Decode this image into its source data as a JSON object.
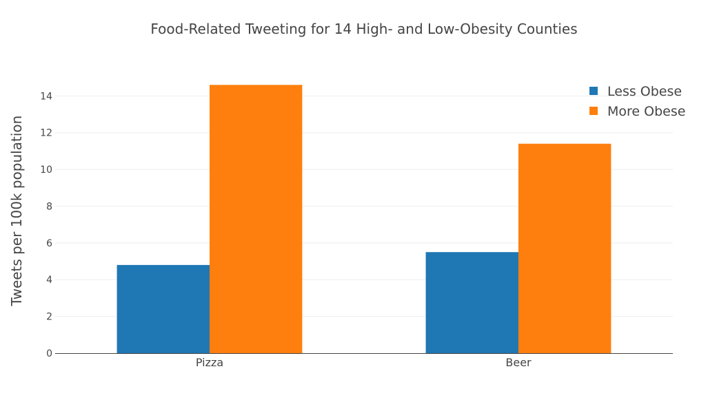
{
  "chart_data": {
    "type": "bar",
    "title": "Food-Related Tweeting for 14 High- and Low-Obesity Counties",
    "xlabel": "",
    "ylabel": "Tweets per 100k population",
    "categories": [
      "Pizza",
      "Beer"
    ],
    "series": [
      {
        "name": "Less Obese",
        "values": [
          4.8,
          5.5
        ],
        "color": "#1f77b4"
      },
      {
        "name": "More Obese",
        "values": [
          14.6,
          11.4
        ],
        "color": "#ff7f0e"
      }
    ],
    "ylim": [
      0,
      15.1
    ],
    "yticks": [
      0,
      2,
      4,
      6,
      8,
      10,
      12,
      14
    ],
    "grid": true,
    "legend_position": "top-right"
  }
}
